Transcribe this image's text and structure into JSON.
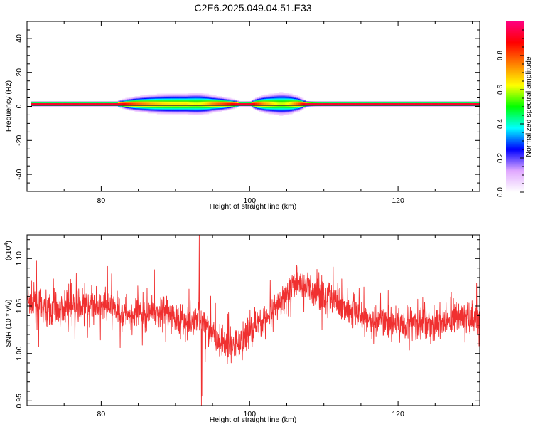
{
  "title": "C2E6.2025.049.04.51.E33",
  "chart_data": [
    {
      "type": "heatmap",
      "xlabel": "Height of straight line (km)",
      "ylabel": "Frequency (Hz)",
      "xlim": [
        70,
        131
      ],
      "ylim": [
        -50,
        50
      ],
      "x_ticks": [
        80,
        100,
        120
      ],
      "y_ticks": [
        40,
        20,
        0,
        -20,
        -40
      ],
      "colorbar": {
        "label": "Normalized spectral amplitude",
        "range": [
          0,
          1
        ],
        "ticks": [
          "0.0",
          "0.2",
          "0.4",
          "0.6",
          "0.8"
        ],
        "colors": [
          "#ffffff",
          "#e0a8ff",
          "#0000ff",
          "#00ffff",
          "#00ff00",
          "#ffff00",
          "#ff8000",
          "#ff0000",
          "#ff0080"
        ]
      },
      "signal": {
        "x_range": [
          70.5,
          131
        ],
        "center_frequency_hz": 1.5,
        "enhanced_regions": [
          {
            "x_range": [
              82,
              98.5
            ],
            "peak_x": 93
          },
          {
            "x_range": [
              100,
              107.5
            ],
            "peak_x": 104.5
          }
        ]
      }
    },
    {
      "type": "line",
      "xlabel": "Height of straight line (km)",
      "ylabel": "SNR (10 * v/v)",
      "y_scale_label": "(x10",
      "y_scale_exponent": "4",
      "xlim": [
        70,
        131
      ],
      "ylim": [
        0.945,
        1.125
      ],
      "x_ticks": [
        80,
        100,
        120
      ],
      "y_ticks": [
        "1.10",
        "1.05",
        "1.00",
        "0.95"
      ],
      "line_color": "#f03030",
      "trend": [
        [
          70,
          1.055
        ],
        [
          73,
          1.045
        ],
        [
          76,
          1.05
        ],
        [
          79,
          1.05
        ],
        [
          82,
          1.045
        ],
        [
          85,
          1.04
        ],
        [
          88,
          1.045
        ],
        [
          90,
          1.04
        ],
        [
          92,
          1.03
        ],
        [
          93.3,
          1.04
        ],
        [
          95,
          1.02
        ],
        [
          97,
          1.005
        ],
        [
          98.5,
          1.01
        ],
        [
          100,
          1.025
        ],
        [
          102,
          1.035
        ],
        [
          104,
          1.05
        ],
        [
          106,
          1.075
        ],
        [
          108,
          1.07
        ],
        [
          110,
          1.06
        ],
        [
          113,
          1.05
        ],
        [
          116,
          1.035
        ],
        [
          119,
          1.03
        ],
        [
          122,
          1.035
        ],
        [
          125,
          1.03
        ],
        [
          128,
          1.04
        ],
        [
          131,
          1.035
        ]
      ],
      "features": [
        {
          "x": 93.2,
          "y_max": 1.125
        },
        {
          "x": 93.5,
          "y_min": 0.945
        }
      ]
    }
  ]
}
